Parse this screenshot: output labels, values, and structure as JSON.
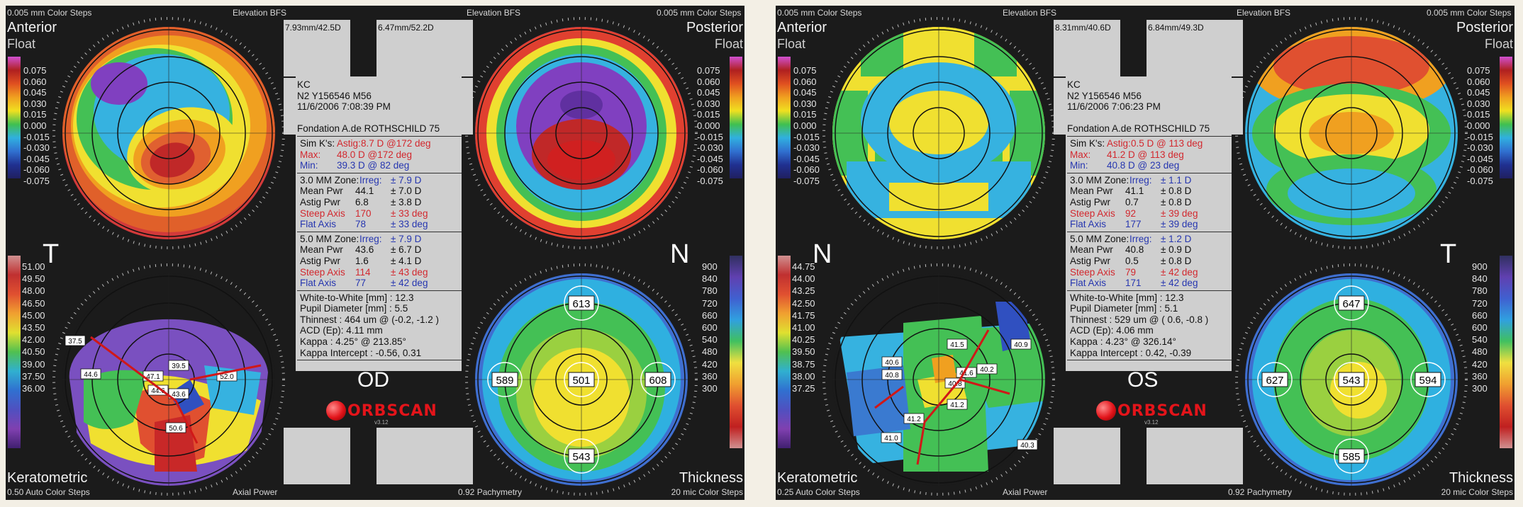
{
  "od": {
    "top_left_steps": "0.005 mm Color Steps",
    "top_center_left": "Elevation BFS",
    "top_center_right": "Elevation BFS",
    "top_right_steps": "0.005 mm Color Steps",
    "anterior_title": "Anterior",
    "anterior_sub": "Float",
    "posterior_title": "Posterior",
    "posterior_sub": "Float",
    "left_side_letter": "T",
    "right_side_letter": "N",
    "kbox_left": "7.93mm/42.5D",
    "kbox_right": "6.47mm/52.2D",
    "eye_label": "OD",
    "bottom_left_title": "Keratometric",
    "bottom_left_steps": "0.50 Auto Color Steps",
    "bottom_center_left": "Axial Power",
    "bottom_center_right": "0.92 Pachymetry",
    "bottom_right_title": "Thickness",
    "bottom_right_steps": "20 mic Color Steps",
    "logo_text": "ORBSCAN",
    "logo_version": "v3.12",
    "elev_scale": [
      "0.075",
      "0.060",
      "0.045",
      "0.030",
      "0.015",
      "0.000",
      "-0.015",
      "-0.030",
      "-0.045",
      "-0.060",
      "-0.075"
    ],
    "kerato_scale": [
      "51.00",
      "49.50",
      "48.00",
      "46.50",
      "45.00",
      "43.50",
      "42.00",
      "40.50",
      "39.00",
      "37.50",
      "36.00"
    ],
    "thick_scale": [
      "900",
      "840",
      "780",
      "720",
      "660",
      "600",
      "540",
      "480",
      "420",
      "360",
      "300"
    ],
    "pachy_values": [
      "613",
      "589",
      "501",
      "608",
      "543"
    ],
    "kerato_values": [
      "37.5",
      "44.6",
      "47.1",
      "39.5",
      "43.6",
      "44.6",
      "50.6",
      "52.0"
    ],
    "info": {
      "name": "KC",
      "id": "N2 Y156546 M56",
      "date": "11/6/2006 7:08:39 PM",
      "clinic": "Fondation A.de ROTHSCHILD 75",
      "simk_label": "Sim K's:",
      "simk_astig_label": "Astig:",
      "simk_astig": "8.7 D  @172 deg",
      "max_label": "Max:",
      "max_val": "48.0 D  @172 deg",
      "min_label": "Min:",
      "min_val": "39.3 D  @ 82 deg",
      "zone3_label": "3.0 MM Zone:",
      "zone3_irreg_label": "Irreg:",
      "zone3_irreg": "± 7.9 D",
      "zone3_mean_label": "Mean Pwr",
      "zone3_mean": "44.1",
      "zone3_mean_pm": "± 7.0 D",
      "zone3_astig_label": "Astig Pwr",
      "zone3_astig": "6.8",
      "zone3_astig_pm": "± 3.8 D",
      "zone3_steep_label": "Steep Axis",
      "zone3_steep": "170",
      "zone3_steep_pm": "± 33 deg",
      "zone3_flat_label": "Flat Axis",
      "zone3_flat": "78",
      "zone3_flat_pm": "± 33 deg",
      "zone5_label": "5.0 MM Zone:",
      "zone5_irreg_label": "Irreg:",
      "zone5_irreg": "± 7.9 D",
      "zone5_mean_label": "Mean Pwr",
      "zone5_mean": "43.6",
      "zone5_mean_pm": "± 6.7 D",
      "zone5_astig_label": "Astig Pwr",
      "zone5_astig": "1.6",
      "zone5_astig_pm": "± 4.1 D",
      "zone5_steep_label": "Steep Axis",
      "zone5_steep": "114",
      "zone5_steep_pm": "± 43 deg",
      "zone5_flat_label": "Flat Axis",
      "zone5_flat": "77",
      "zone5_flat_pm": "± 42 deg",
      "wtw": "White-to-White [mm] : 12.3",
      "pupil": "Pupil Diameter [mm] :  5.5",
      "thinnest": "Thinnest : 464 um @ (-0.2, -1.2 )",
      "acd": "ACD (Ep): 4.11 mm",
      "kappa": "Kappa : 4.25° @ 213.85°",
      "kappa_int": "Kappa Intercept : -0.56, 0.31"
    }
  },
  "os": {
    "top_left_steps": "0.005 mm Color Steps",
    "top_center_left": "Elevation BFS",
    "top_center_right": "Elevation BFS",
    "top_right_steps": "0.005 mm Color Steps",
    "anterior_title": "Anterior",
    "anterior_sub": "Float",
    "posterior_title": "Posterior",
    "posterior_sub": "Float",
    "left_side_letter": "N",
    "right_side_letter": "T",
    "kbox_left": "8.31mm/40.6D",
    "kbox_right": "6.84mm/49.3D",
    "eye_label": "OS",
    "bottom_left_title": "Keratometric",
    "bottom_left_steps": "0.25 Auto Color Steps",
    "bottom_center_left": "Axial Power",
    "bottom_center_right": "0.92 Pachymetry",
    "bottom_right_title": "Thickness",
    "bottom_right_steps": "20 mic Color Steps",
    "logo_text": "ORBSCAN",
    "logo_version": "v3.12",
    "elev_scale": [
      "0.075",
      "0.060",
      "0.045",
      "0.030",
      "0.015",
      "0.000",
      "-0.015",
      "-0.030",
      "-0.045",
      "-0.060",
      "-0.075"
    ],
    "kerato_scale": [
      "44.75",
      "44.00",
      "43.25",
      "42.50",
      "41.75",
      "41.00",
      "40.25",
      "39.50",
      "38.75",
      "38.00",
      "37.25"
    ],
    "thick_scale": [
      "900",
      "840",
      "780",
      "720",
      "660",
      "600",
      "540",
      "480",
      "420",
      "360",
      "300"
    ],
    "pachy_values": [
      "647",
      "627",
      "543",
      "594",
      "585"
    ],
    "kerato_values": [
      "41.5",
      "40.9",
      "40.6",
      "40.8",
      "41.6",
      "40.8",
      "40.2",
      "41.2",
      "41.2",
      "41.0",
      "40.3"
    ],
    "info": {
      "name": "KC",
      "id": "N2 Y156546 M56",
      "date": "11/6/2006 7:06:23 PM",
      "clinic": "Fondation A.de ROTHSCHILD 75",
      "simk_label": "Sim K's:",
      "simk_astig_label": "Astig:",
      "simk_astig": "0.5 D  @ 113 deg",
      "max_label": "Max:",
      "max_val": "41.2 D  @ 113 deg",
      "min_label": "Min:",
      "min_val": "40.8 D  @ 23 deg",
      "zone3_label": "3.0 MM Zone:",
      "zone3_irreg_label": "Irreg:",
      "zone3_irreg": "± 1.1 D",
      "zone3_mean_label": "Mean Pwr",
      "zone3_mean": "41.1",
      "zone3_mean_pm": "± 0.8 D",
      "zone3_astig_label": "Astig Pwr",
      "zone3_astig": "0.7",
      "zone3_astig_pm": "± 0.8 D",
      "zone3_steep_label": "Steep Axis",
      "zone3_steep": "92",
      "zone3_steep_pm": "± 39 deg",
      "zone3_flat_label": "Flat Axis",
      "zone3_flat": "177",
      "zone3_flat_pm": "± 39 deg",
      "zone5_label": "5.0 MM Zone:",
      "zone5_irreg_label": "Irreg:",
      "zone5_irreg": "± 1.2 D",
      "zone5_mean_label": "Mean Pwr",
      "zone5_mean": "40.8",
      "zone5_mean_pm": "± 0.9 D",
      "zone5_astig_label": "Astig Pwr",
      "zone5_astig": "0.5",
      "zone5_astig_pm": "± 0.8 D",
      "zone5_steep_label": "Steep Axis",
      "zone5_steep": "79",
      "zone5_steep_pm": "± 42 deg",
      "zone5_flat_label": "Flat Axis",
      "zone5_flat": "171",
      "zone5_flat_pm": "± 42 deg",
      "wtw": "White-to-White [mm] : 12.3",
      "pupil": "Pupil Diameter [mm] :  5.1",
      "thinnest": "Thinnest : 529 um @ ( 0.6, -0.8 )",
      "acd": "ACD (Ep): 4.06 mm",
      "kappa": "Kappa : 4.23° @ 326.14°",
      "kappa_int": "Kappa Intercept : 0.42, -0.39"
    }
  },
  "colors": {
    "panel_bg": "#1b1b1b",
    "info_bg": "#cfcfcf",
    "red_text": "#d2282e",
    "blue_text": "#2636b0",
    "logo_red": "#e3141a"
  }
}
